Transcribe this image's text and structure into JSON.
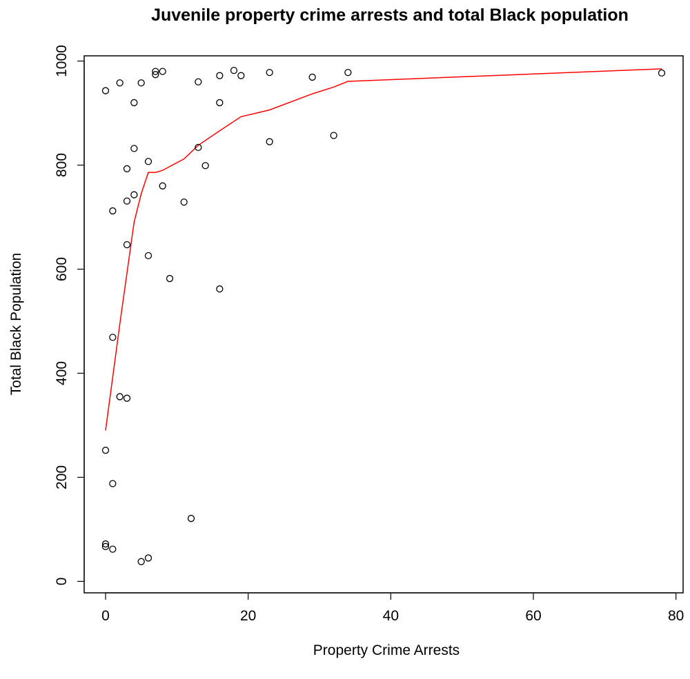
{
  "chart_data": {
    "type": "scatter",
    "title": "Juvenile property crime arrests and total Black population",
    "xlabel": "Property Crime Arrests",
    "ylabel": "Total Black Population",
    "xlim": [
      -3,
      81
    ],
    "ylim": [
      -22,
      1010
    ],
    "xticks": [
      0,
      20,
      40,
      60,
      80
    ],
    "yticks": [
      0,
      200,
      400,
      600,
      800,
      1000
    ],
    "grid": false,
    "series": [
      {
        "kind": "points",
        "marker": "open-circle",
        "color": "#000000",
        "points": [
          [
            0,
            943
          ],
          [
            2,
            958
          ],
          [
            4,
            920
          ],
          [
            5,
            958
          ],
          [
            7,
            980
          ],
          [
            7,
            974
          ],
          [
            8,
            980
          ],
          [
            13,
            960
          ],
          [
            16,
            972
          ],
          [
            16,
            920
          ],
          [
            18,
            982
          ],
          [
            19,
            972
          ],
          [
            23,
            978
          ],
          [
            29,
            969
          ],
          [
            34,
            978
          ],
          [
            78,
            977
          ],
          [
            4,
            832
          ],
          [
            3,
            793
          ],
          [
            6,
            807
          ],
          [
            4,
            743
          ],
          [
            3,
            731
          ],
          [
            1,
            712
          ],
          [
            8,
            760
          ],
          [
            11,
            729
          ],
          [
            13,
            834
          ],
          [
            14,
            799
          ],
          [
            23,
            845
          ],
          [
            32,
            857
          ],
          [
            3,
            647
          ],
          [
            6,
            626
          ],
          [
            9,
            582
          ],
          [
            16,
            562
          ],
          [
            1,
            469
          ],
          [
            2,
            355
          ],
          [
            3,
            352
          ],
          [
            0,
            252
          ],
          [
            1,
            188
          ],
          [
            12,
            121
          ],
          [
            0,
            72
          ],
          [
            0,
            67
          ],
          [
            1,
            62
          ],
          [
            6,
            45
          ],
          [
            5,
            38
          ]
        ]
      },
      {
        "kind": "line",
        "color": "#ff0000",
        "points": [
          [
            0,
            290
          ],
          [
            2,
            495
          ],
          [
            4,
            690
          ],
          [
            5,
            745
          ],
          [
            6,
            786
          ],
          [
            7,
            786
          ],
          [
            8,
            790
          ],
          [
            11,
            812
          ],
          [
            13,
            838
          ],
          [
            16,
            866
          ],
          [
            19,
            893
          ],
          [
            23,
            906
          ],
          [
            29,
            937
          ],
          [
            32,
            950
          ],
          [
            34,
            961
          ],
          [
            78,
            985
          ]
        ]
      }
    ]
  }
}
